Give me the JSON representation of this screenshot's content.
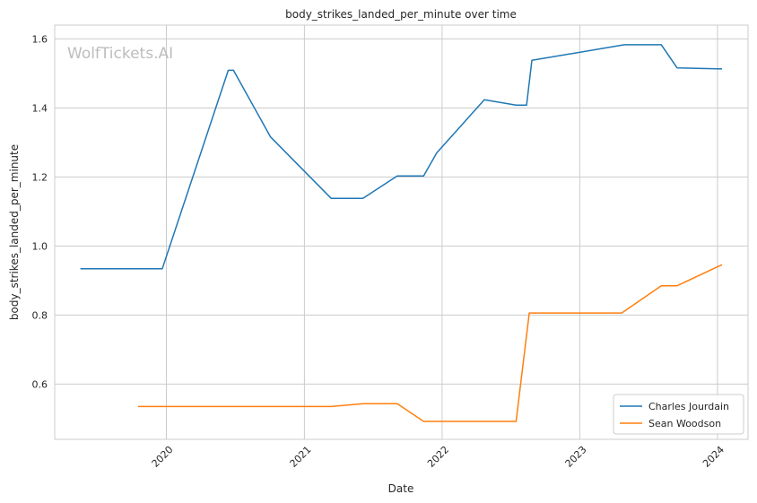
{
  "chart_data": {
    "type": "line",
    "title": "body_strikes_landed_per_minute over time",
    "xlabel": "Date",
    "ylabel": "body_strikes_landed_per_minute",
    "watermark": "WolfTickets.AI",
    "xlim": [
      "2019-03-11",
      "2024-03-22"
    ],
    "ylim": [
      0.44,
      1.64
    ],
    "x_ticks": [
      "2020",
      "2021",
      "2022",
      "2023",
      "2024"
    ],
    "x_tick_dates": [
      "2020-01-01",
      "2021-01-01",
      "2022-01-01",
      "2023-01-01",
      "2024-01-01"
    ],
    "y_ticks": [
      "0.6",
      "0.8",
      "1.0",
      "1.2",
      "1.4",
      "1.6"
    ],
    "y_tick_values": [
      0.6,
      0.8,
      1.0,
      1.2,
      1.4,
      1.6
    ],
    "grid": true,
    "legend_position": "bottom-right",
    "series": [
      {
        "name": "Charles Jourdain",
        "color": "#1f77b4",
        "points": [
          [
            "2019-05-18",
            0.934
          ],
          [
            "2019-12-21",
            0.934
          ],
          [
            "2020-06-13",
            1.509
          ],
          [
            "2020-06-27",
            1.509
          ],
          [
            "2020-10-03",
            1.316
          ],
          [
            "2021-03-13",
            1.138
          ],
          [
            "2021-06-05",
            1.138
          ],
          [
            "2021-09-04",
            1.203
          ],
          [
            "2021-11-13",
            1.203
          ],
          [
            "2021-12-18",
            1.27
          ],
          [
            "2022-04-23",
            1.424
          ],
          [
            "2022-07-16",
            1.408
          ],
          [
            "2022-08-13",
            1.408
          ],
          [
            "2022-08-27",
            1.538
          ],
          [
            "2023-04-29",
            1.583
          ],
          [
            "2023-08-05",
            1.583
          ],
          [
            "2023-09-16",
            1.516
          ],
          [
            "2024-01-13",
            1.513
          ]
        ]
      },
      {
        "name": "Sean Woodson",
        "color": "#ff7f0e",
        "points": [
          [
            "2019-10-18",
            0.535
          ],
          [
            "2021-03-13",
            0.535
          ],
          [
            "2021-06-05",
            0.543
          ],
          [
            "2021-09-04",
            0.543
          ],
          [
            "2021-11-13",
            0.492
          ],
          [
            "2022-07-16",
            0.492
          ],
          [
            "2022-08-20",
            0.806
          ],
          [
            "2023-04-22",
            0.806
          ],
          [
            "2023-08-05",
            0.885
          ],
          [
            "2023-09-16",
            0.885
          ],
          [
            "2024-01-13",
            0.946
          ]
        ]
      }
    ]
  }
}
